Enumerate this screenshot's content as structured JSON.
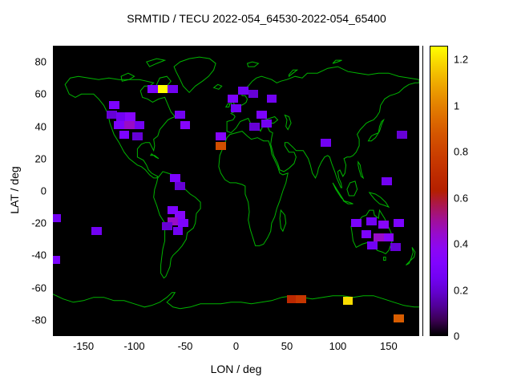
{
  "title": "SRMTID / TECU 2022-054_64530-2022-054_65400",
  "style": {
    "background": "#ffffff",
    "plot_background": "#000000",
    "coastline_color": "#00b400",
    "text_color": "#000000",
    "palette_low_color": "#000000",
    "palette_mid_color": "#7c03fe",
    "palette_high_color": "#c84000",
    "palette_max_color": "#ffff00"
  },
  "chart_data": {
    "type": "heatmap",
    "title": "SRMTID / TECU 2022-054_64530-2022-054_65400",
    "xlabel": "LON / deg",
    "ylabel": "LAT / deg",
    "xlim": [
      -180,
      180
    ],
    "ylim": [
      -90,
      90
    ],
    "xticks": [
      -150,
      -100,
      -50,
      0,
      50,
      100,
      150
    ],
    "yticks": [
      -80,
      -60,
      -40,
      -20,
      0,
      20,
      40,
      60,
      80
    ],
    "grid": false,
    "basemap": "world coastlines drawn in green on black background",
    "colorbar": {
      "position": "right",
      "min": 0,
      "max": 1.26,
      "ticks": [
        0,
        0.2,
        0.4,
        0.6,
        0.8,
        1,
        1.2
      ],
      "palette": "gnuplot pm3d traditional (black - violet - red - orange - yellow)"
    },
    "cell_size_deg": {
      "lon": 10,
      "lat": 5
    },
    "cells_format": [
      "lon_center_deg",
      "lat_center_deg",
      "tecu_value"
    ],
    "cells": [
      [
        -82,
        63,
        0.3
      ],
      [
        -72,
        63,
        1.26
      ],
      [
        -62,
        63,
        0.25
      ],
      [
        -120,
        53,
        0.3
      ],
      [
        -122,
        47,
        0.2
      ],
      [
        -113,
        46,
        0.25
      ],
      [
        -104,
        46,
        0.35
      ],
      [
        -115,
        41,
        0.3
      ],
      [
        -105,
        41,
        0.45
      ],
      [
        -95,
        41,
        0.25
      ],
      [
        -110,
        35,
        0.3
      ],
      [
        -97,
        34,
        0.2
      ],
      [
        -55,
        47,
        0.25
      ],
      [
        -50,
        41,
        0.35
      ],
      [
        -60,
        8,
        0.3
      ],
      [
        -55,
        3,
        0.2
      ],
      [
        -15,
        34,
        0.35
      ],
      [
        -15,
        28,
        0.85
      ],
      [
        -3,
        57,
        0.3
      ],
      [
        7,
        62,
        0.25
      ],
      [
        17,
        60,
        0.2
      ],
      [
        0,
        51,
        0.25
      ],
      [
        35,
        57,
        0.25
      ],
      [
        25,
        47,
        0.3
      ],
      [
        30,
        42,
        0.25
      ],
      [
        18,
        40,
        0.2
      ],
      [
        88,
        30,
        0.25
      ],
      [
        163,
        35,
        0.2
      ],
      [
        -177,
        -17,
        0.25
      ],
      [
        -137,
        -25,
        0.25
      ],
      [
        -178,
        -43,
        0.3
      ],
      [
        148,
        6,
        0.25
      ],
      [
        -62,
        -12,
        0.3
      ],
      [
        -55,
        -15,
        0.35
      ],
      [
        -62,
        -19,
        0.45
      ],
      [
        -52,
        -20,
        0.3
      ],
      [
        -57,
        -25,
        0.25
      ],
      [
        -68,
        -22,
        0.2
      ],
      [
        118,
        -20,
        0.3
      ],
      [
        133,
        -19,
        0.25
      ],
      [
        145,
        -21,
        0.35
      ],
      [
        128,
        -27,
        0.3
      ],
      [
        140,
        -29,
        0.45
      ],
      [
        150,
        -29,
        0.35
      ],
      [
        134,
        -34,
        0.25
      ],
      [
        160,
        -20,
        0.3
      ],
      [
        157,
        -35,
        0.2
      ],
      [
        55,
        -67,
        0.68
      ],
      [
        64,
        -67,
        0.75
      ],
      [
        110,
        -68,
        1.2
      ],
      [
        160,
        -79,
        0.9
      ]
    ]
  }
}
